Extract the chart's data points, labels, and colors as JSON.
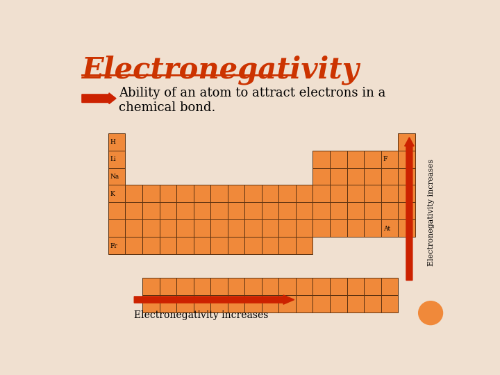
{
  "title": "Electronegativity",
  "title_color": "#cc3300",
  "bg_color": "#f0e0d0",
  "cell_color": "#f0893a",
  "cell_edge_color": "#5a3010",
  "subtitle_line1": "Ability of an atom to attract electrons in a",
  "subtitle_line2": "chemical bond.",
  "arrow_bottom_label": "Electronegativity increases",
  "arrow_right_label": "Electronegativity increases",
  "arrow_color": "#cc2200"
}
